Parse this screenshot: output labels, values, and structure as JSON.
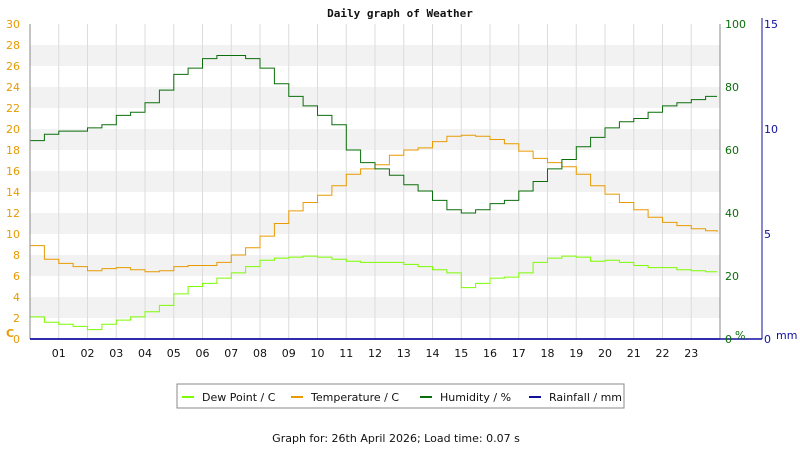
{
  "chart_data": {
    "type": "line",
    "title": "Daily graph of Weather",
    "footer": "Graph for: 26th April 2026; Load time: 0.07 s",
    "x_unit": "hour",
    "xlim": [
      0,
      24
    ],
    "x_ticks": [
      "01",
      "02",
      "03",
      "04",
      "05",
      "06",
      "07",
      "08",
      "09",
      "10",
      "11",
      "12",
      "13",
      "14",
      "15",
      "16",
      "17",
      "18",
      "19",
      "20",
      "21",
      "22",
      "23"
    ],
    "axes": {
      "left": {
        "label": "C",
        "ylim": [
          0,
          30
        ],
        "ticks": [
          "0",
          "2",
          "4",
          "6",
          "8",
          "10",
          "12",
          "14",
          "16",
          "18",
          "20",
          "22",
          "24",
          "26",
          "28",
          "30"
        ],
        "color": "#e89a00"
      },
      "right1": {
        "label": "%",
        "ylim": [
          0,
          100
        ],
        "ticks": [
          "0",
          "20",
          "40",
          "60",
          "80",
          "100"
        ],
        "color": "#0a6e0a"
      },
      "right2": {
        "label": "mm",
        "ylim": [
          0,
          15
        ],
        "ticks": [
          "0",
          "5",
          "10",
          "15"
        ],
        "color": "#1010a0"
      }
    },
    "grid": true,
    "legend_position": "bottom",
    "series": [
      {
        "name": "Dew Point / C",
        "axis": "left",
        "color": "#7cfc00",
        "x": [
          0,
          0.5,
          1,
          1.5,
          2,
          2.5,
          3,
          3.5,
          4,
          4.5,
          5,
          5.5,
          6,
          6.5,
          7,
          7.5,
          8,
          8.5,
          9,
          9.5,
          10,
          10.5,
          11,
          11.5,
          12,
          12.5,
          13,
          13.5,
          14,
          14.5,
          15,
          15.5,
          16,
          16.5,
          17,
          17.5,
          18,
          18.5,
          19,
          19.5,
          20,
          20.5,
          21,
          21.5,
          22,
          22.5,
          23,
          23.5,
          23.9
        ],
        "y": [
          2.1,
          1.6,
          1.4,
          1.2,
          0.9,
          1.4,
          1.8,
          2.1,
          2.6,
          3.2,
          4.3,
          5.0,
          5.3,
          5.8,
          6.3,
          6.9,
          7.5,
          7.7,
          7.8,
          7.9,
          7.8,
          7.6,
          7.4,
          7.3,
          7.3,
          7.3,
          7.1,
          6.9,
          6.6,
          6.3,
          4.9,
          5.3,
          5.8,
          5.9,
          6.3,
          7.3,
          7.7,
          7.9,
          7.8,
          7.4,
          7.5,
          7.3,
          7.0,
          6.8,
          6.8,
          6.6,
          6.5,
          6.4,
          6.4
        ]
      },
      {
        "name": "Temperature / C",
        "axis": "left",
        "color": "#e89a00",
        "x": [
          0,
          0.5,
          1,
          1.5,
          2,
          2.5,
          3,
          3.5,
          4,
          4.5,
          5,
          5.5,
          6,
          6.5,
          7,
          7.5,
          8,
          8.5,
          9,
          9.5,
          10,
          10.5,
          11,
          11.5,
          12,
          12.5,
          13,
          13.5,
          14,
          14.5,
          15,
          15.5,
          16,
          16.5,
          17,
          17.5,
          18,
          18.5,
          19,
          19.5,
          20,
          20.5,
          21,
          21.5,
          22,
          22.5,
          23,
          23.5,
          23.9
        ],
        "y": [
          8.9,
          7.6,
          7.2,
          6.9,
          6.5,
          6.7,
          6.8,
          6.6,
          6.4,
          6.5,
          6.9,
          7.0,
          7.0,
          7.3,
          8.0,
          8.7,
          9.8,
          11.0,
          12.2,
          13.0,
          13.7,
          14.6,
          15.7,
          16.2,
          16.6,
          17.5,
          18.0,
          18.2,
          18.8,
          19.3,
          19.4,
          19.3,
          19.0,
          18.6,
          17.9,
          17.2,
          16.8,
          16.4,
          15.7,
          14.6,
          13.8,
          13.0,
          12.3,
          11.6,
          11.1,
          10.8,
          10.5,
          10.3,
          10.2
        ]
      },
      {
        "name": "Humidity / %",
        "axis": "right1",
        "color": "#0a6e0a",
        "x": [
          0,
          0.5,
          1,
          1.5,
          2,
          2.5,
          3,
          3.5,
          4,
          4.5,
          5,
          5.5,
          6,
          6.5,
          7,
          7.5,
          8,
          8.5,
          9,
          9.5,
          10,
          10.5,
          11,
          11.5,
          12,
          12.5,
          13,
          13.5,
          14,
          14.5,
          15,
          15.5,
          16,
          16.5,
          17,
          17.5,
          18,
          18.5,
          19,
          19.5,
          20,
          20.5,
          21,
          21.5,
          22,
          22.5,
          23,
          23.5,
          23.9
        ],
        "y": [
          63,
          65,
          66,
          66,
          67,
          68,
          71,
          72,
          75,
          79,
          84,
          86,
          89,
          90,
          90,
          89,
          86,
          81,
          77,
          74,
          71,
          68,
          60,
          56,
          54,
          52,
          49,
          47,
          44,
          41,
          40,
          41,
          43,
          44,
          47,
          50,
          54,
          57,
          61,
          64,
          67,
          69,
          70,
          72,
          74,
          75,
          76,
          77,
          77
        ]
      },
      {
        "name": "Rainfall / mm",
        "axis": "right2",
        "color": "#1010a0",
        "x": [
          0,
          24
        ],
        "y": [
          0,
          0
        ]
      }
    ]
  }
}
